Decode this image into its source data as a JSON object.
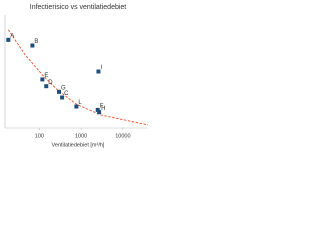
{
  "chart_data": {
    "type": "scatter",
    "title": "Infectierisico vs ventilatiedebiet",
    "xlabel": "Ventilatiedebiet [m³/h]",
    "xscale": "log",
    "xlim": [
      15,
      40000
    ],
    "xticks": [
      100,
      1000,
      10000
    ],
    "ylim": [
      0,
      1
    ],
    "series": [
      {
        "color": "#1f4e79",
        "labels": [
          "A",
          "B",
          "E",
          "D",
          "G",
          "C",
          "L",
          "F",
          "H",
          "I"
        ],
        "x": [
          18,
          68,
          118,
          146,
          295,
          350,
          770,
          2500,
          2700,
          2600
        ],
        "values": [
          0.78,
          0.73,
          0.43,
          0.37,
          0.32,
          0.27,
          0.19,
          0.16,
          0.14,
          0.5
        ]
      }
    ],
    "trendline": {
      "color": "#e8502a",
      "x": [
        18,
        45,
        118,
        265,
        770,
        3000,
        40000
      ],
      "values": [
        0.87,
        0.65,
        0.47,
        0.34,
        0.21,
        0.115,
        0.027
      ]
    }
  }
}
